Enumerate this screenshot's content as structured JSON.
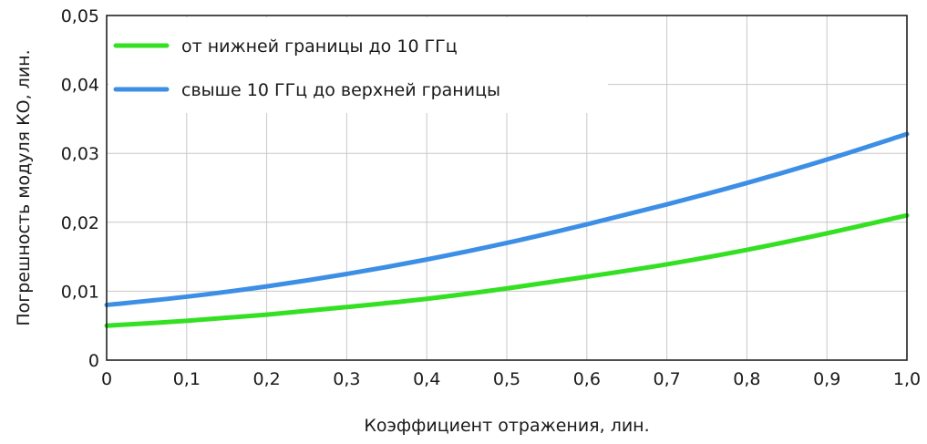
{
  "chart_data": {
    "type": "line",
    "title": "",
    "xlabel": "Коэффициент отражения, лин.",
    "ylabel": "Погрешность модуля  КО, лин.",
    "xlim": [
      0,
      1.0
    ],
    "ylim": [
      0,
      0.05
    ],
    "grid": true,
    "legend_position": "top-left",
    "x_ticks": [
      "0",
      "0,1",
      "0,2",
      "0,3",
      "0,4",
      "0,5",
      "0,6",
      "0,7",
      "0,8",
      "0,9",
      "1,0"
    ],
    "y_ticks": [
      "0",
      "0,01",
      "0,02",
      "0,03",
      "0,04",
      "0,05"
    ],
    "x": [
      0,
      0.1,
      0.2,
      0.3,
      0.4,
      0.5,
      0.6,
      0.7,
      0.8,
      0.9,
      1.0
    ],
    "series": [
      {
        "name": "от нижней границы до 10 ГГц",
        "color": "#33e022",
        "values": [
          0.005,
          0.0057,
          0.0066,
          0.0077,
          0.0089,
          0.0104,
          0.0121,
          0.0139,
          0.016,
          0.0184,
          0.021
        ]
      },
      {
        "name": "свыше 10 ГГц до верхней границы",
        "color": "#3d8fe6",
        "values": [
          0.008,
          0.0092,
          0.0107,
          0.0125,
          0.0146,
          0.017,
          0.0197,
          0.0226,
          0.0257,
          0.0291,
          0.0328
        ]
      }
    ]
  }
}
